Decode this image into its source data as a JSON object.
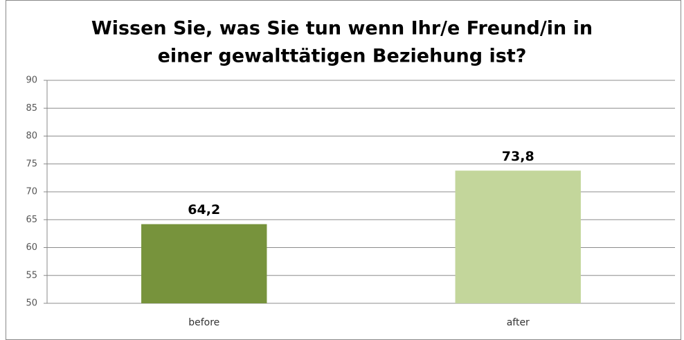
{
  "chart_data": {
    "type": "bar",
    "title": [
      "Wissen Sie, was Sie tun wenn Ihr/e Freund/in in",
      "einer gewalttätigen Beziehung ist?"
    ],
    "categories": [
      "before",
      "after"
    ],
    "values": [
      64.2,
      73.8
    ],
    "value_labels": [
      "64,2",
      "73,8"
    ],
    "colors": [
      "#77933c",
      "#c3d69b"
    ],
    "ylim": [
      50,
      90
    ],
    "yticks": [
      50,
      55,
      60,
      65,
      70,
      75,
      80,
      85,
      90
    ],
    "grid": true
  }
}
